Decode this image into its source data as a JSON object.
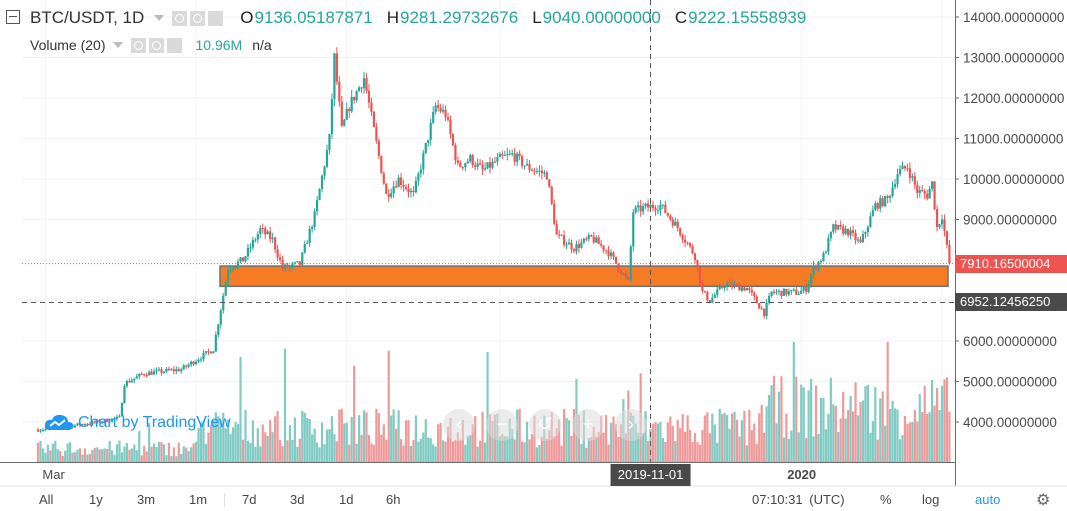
{
  "header": {
    "symbol": "BTC/USDT, 1D",
    "open_key": "O",
    "open": "9136.05187871",
    "high_key": "H",
    "high": "9281.29732676",
    "low_key": "L",
    "low": "9040.00000000",
    "close_key": "C",
    "close": "9222.15558939",
    "volume_label": "Volume (20)",
    "volume_value": "10.96M",
    "volume_ma": "n/a"
  },
  "watermark": "Chart by TradingView",
  "nav_buttons": [
    "‹",
    "−",
    "↺",
    "+",
    "›"
  ],
  "timeframes": [
    "All",
    "1y",
    "3m",
    "1m",
    "7d",
    "3d",
    "1d",
    "6h"
  ],
  "clock": "07:10:31",
  "timezone": "(UTC)",
  "right_controls": {
    "percent": "%",
    "log": "log",
    "auto": "auto"
  },
  "colors": {
    "up": "#26a69a",
    "down": "#ef5350",
    "up_volume": "#80cbc4",
    "down_volume": "#ef9a9a",
    "zone_fill": "#f57c24",
    "zone_border": "#707070",
    "last_price_label": "#ef5350",
    "crosshair_label": "#4a4a4a"
  },
  "chart_data": {
    "type": "candlestick",
    "symbol": "BTC/USDT",
    "interval": "1D",
    "y_axis": {
      "ticks": [
        "14000.00000000",
        "13000.00000000",
        "12000.00000000",
        "11000.00000000",
        "10000.00000000",
        "9000.00000000",
        "8000.00000000",
        "7000.00000000",
        "6000.00000000",
        "5000.00000000",
        "4000.00000000"
      ],
      "tick_values": [
        14000,
        13000,
        12000,
        11000,
        10000,
        9000,
        8000,
        7000,
        6000,
        5000,
        4000
      ],
      "range": [
        3250,
        14350
      ]
    },
    "x_axis": {
      "labels": [
        "Mar",
        "2019-11-01",
        "2020"
      ],
      "range": [
        "2019-02-26",
        "2020-02-27"
      ]
    },
    "last_price": {
      "value": 7910.16500004,
      "label": "7910.16500004"
    },
    "crosshair": {
      "price_label": "6952.12456250",
      "price": 6952.12,
      "date": "2019-11-01"
    },
    "support_zone": {
      "from": 7350,
      "to": 7850
    },
    "price_path": [
      {
        "date": "2019-02-26",
        "price": 3810
      },
      {
        "date": "2019-03-05",
        "price": 3850
      },
      {
        "date": "2019-03-20",
        "price": 3980
      },
      {
        "date": "2019-03-31",
        "price": 4100
      },
      {
        "date": "2019-04-02",
        "price": 4950
      },
      {
        "date": "2019-04-10",
        "price": 5200
      },
      {
        "date": "2019-04-25",
        "price": 5300
      },
      {
        "date": "2019-05-08",
        "price": 5800
      },
      {
        "date": "2019-05-14",
        "price": 7800
      },
      {
        "date": "2019-05-20",
        "price": 8000
      },
      {
        "date": "2019-05-27",
        "price": 8750
      },
      {
        "date": "2019-06-01",
        "price": 8500
      },
      {
        "date": "2019-06-05",
        "price": 7800
      },
      {
        "date": "2019-06-12",
        "price": 7900
      },
      {
        "date": "2019-06-18",
        "price": 9100
      },
      {
        "date": "2019-06-24",
        "price": 11000
      },
      {
        "date": "2019-06-26",
        "price": 13000
      },
      {
        "date": "2019-06-29",
        "price": 11200
      },
      {
        "date": "2019-07-02",
        "price": 11800
      },
      {
        "date": "2019-07-08",
        "price": 12500
      },
      {
        "date": "2019-07-12",
        "price": 11200
      },
      {
        "date": "2019-07-17",
        "price": 9600
      },
      {
        "date": "2019-07-22",
        "price": 10000
      },
      {
        "date": "2019-07-28",
        "price": 9600
      },
      {
        "date": "2019-08-02",
        "price": 10800
      },
      {
        "date": "2019-08-06",
        "price": 11800
      },
      {
        "date": "2019-08-10",
        "price": 11600
      },
      {
        "date": "2019-08-15",
        "price": 10300
      },
      {
        "date": "2019-08-20",
        "price": 10500
      },
      {
        "date": "2019-08-25",
        "price": 10200
      },
      {
        "date": "2019-09-01",
        "price": 10500
      },
      {
        "date": "2019-09-06",
        "price": 10600
      },
      {
        "date": "2019-09-12",
        "price": 10300
      },
      {
        "date": "2019-09-20",
        "price": 10100
      },
      {
        "date": "2019-09-24",
        "price": 8600
      },
      {
        "date": "2019-10-01",
        "price": 8300
      },
      {
        "date": "2019-10-08",
        "price": 8550
      },
      {
        "date": "2019-10-15",
        "price": 8200
      },
      {
        "date": "2019-10-23",
        "price": 7450
      },
      {
        "date": "2019-10-25",
        "price": 9200
      },
      {
        "date": "2019-10-30",
        "price": 9300
      },
      {
        "date": "2019-11-05",
        "price": 9350
      },
      {
        "date": "2019-11-12",
        "price": 8800
      },
      {
        "date": "2019-11-19",
        "price": 8100
      },
      {
        "date": "2019-11-22",
        "price": 7200
      },
      {
        "date": "2019-11-25",
        "price": 7000
      },
      {
        "date": "2019-12-01",
        "price": 7400
      },
      {
        "date": "2019-12-10",
        "price": 7300
      },
      {
        "date": "2019-12-17",
        "price": 6700
      },
      {
        "date": "2019-12-20",
        "price": 7200
      },
      {
        "date": "2019-12-31",
        "price": 7200
      },
      {
        "date": "2020-01-03",
        "price": 7300
      },
      {
        "date": "2020-01-06",
        "price": 7800
      },
      {
        "date": "2020-01-10",
        "price": 8100
      },
      {
        "date": "2020-01-14",
        "price": 8800
      },
      {
        "date": "2020-01-20",
        "price": 8700
      },
      {
        "date": "2020-01-25",
        "price": 8400
      },
      {
        "date": "2020-01-31",
        "price": 9350
      },
      {
        "date": "2020-02-05",
        "price": 9500
      },
      {
        "date": "2020-02-09",
        "price": 10150
      },
      {
        "date": "2020-02-13",
        "price": 10300
      },
      {
        "date": "2020-02-17",
        "price": 9700
      },
      {
        "date": "2020-02-21",
        "price": 9600
      },
      {
        "date": "2020-02-23",
        "price": 9900
      },
      {
        "date": "2020-02-25",
        "price": 8800
      },
      {
        "date": "2020-02-27",
        "price": 9100
      },
      {
        "date": "2020-02-28",
        "price": 8700
      },
      {
        "date": "2020-03-01",
        "price": 7910
      }
    ]
  }
}
